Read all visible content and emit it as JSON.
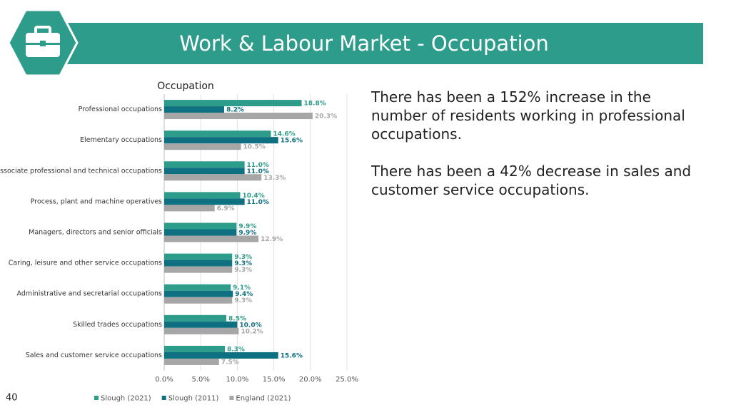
{
  "header": {
    "title": "Work & Labour Market - Occupation"
  },
  "chart_data": {
    "type": "hbar",
    "title": "Occupation",
    "categories": [
      "Professional occupations",
      "Elementary occupations",
      "Associate professional and technical occupations",
      "Process, plant and machine operatives",
      "Managers, directors and senior officials",
      "Caring, leisure and other service occupations",
      "Administrative and secretarial occupations",
      "Skilled trades occupations",
      "Sales and customer service occupations"
    ],
    "series": [
      {
        "name": "Slough (2021)",
        "color": "#2e9c8a",
        "values": [
          18.8,
          14.6,
          11.0,
          10.4,
          9.9,
          9.3,
          9.1,
          8.5,
          8.3
        ],
        "value_labels": [
          "18.8%",
          "14.6%",
          "11.0%",
          "10.4%",
          "9.9%",
          "9.3%",
          "9.1%",
          "8.5%",
          "8.3%"
        ]
      },
      {
        "name": "Slough (2011)",
        "color": "#0e7080",
        "values": [
          8.2,
          15.6,
          11.0,
          11.0,
          9.9,
          9.3,
          9.4,
          10.0,
          15.6
        ],
        "value_labels": [
          "8.2%",
          "15.6%",
          "11.0%",
          "11.0%",
          "9.9%",
          "9.3%",
          "9.4%",
          "10.0%",
          "15.6%"
        ]
      },
      {
        "name": "England (2021)",
        "color": "#a6a6a6",
        "values": [
          20.3,
          10.5,
          13.3,
          6.9,
          12.9,
          9.3,
          9.3,
          10.2,
          7.5
        ],
        "value_labels": [
          "20.3%",
          "10.5%",
          "13.3%",
          "6.9%",
          "12.9%",
          "9.3%",
          "9.3%",
          "10.2%",
          "7.5%"
        ]
      }
    ],
    "xlim": [
      0,
      25
    ],
    "xticks": [
      {
        "value": 0,
        "label": "0.0%"
      },
      {
        "value": 5,
        "label": "5.0%"
      },
      {
        "value": 10,
        "label": "10.0%"
      },
      {
        "value": 15,
        "label": "15.0%"
      },
      {
        "value": 20,
        "label": "20.0%"
      },
      {
        "value": 25,
        "label": "25.0%"
      }
    ],
    "grid": true,
    "legend": "bottom"
  },
  "text": [
    "There has been a 152% increase in the number of residents working in professional occupations.",
    "There has been a 42% decrease in sales and customer service occupations."
  ],
  "page_number": "40"
}
